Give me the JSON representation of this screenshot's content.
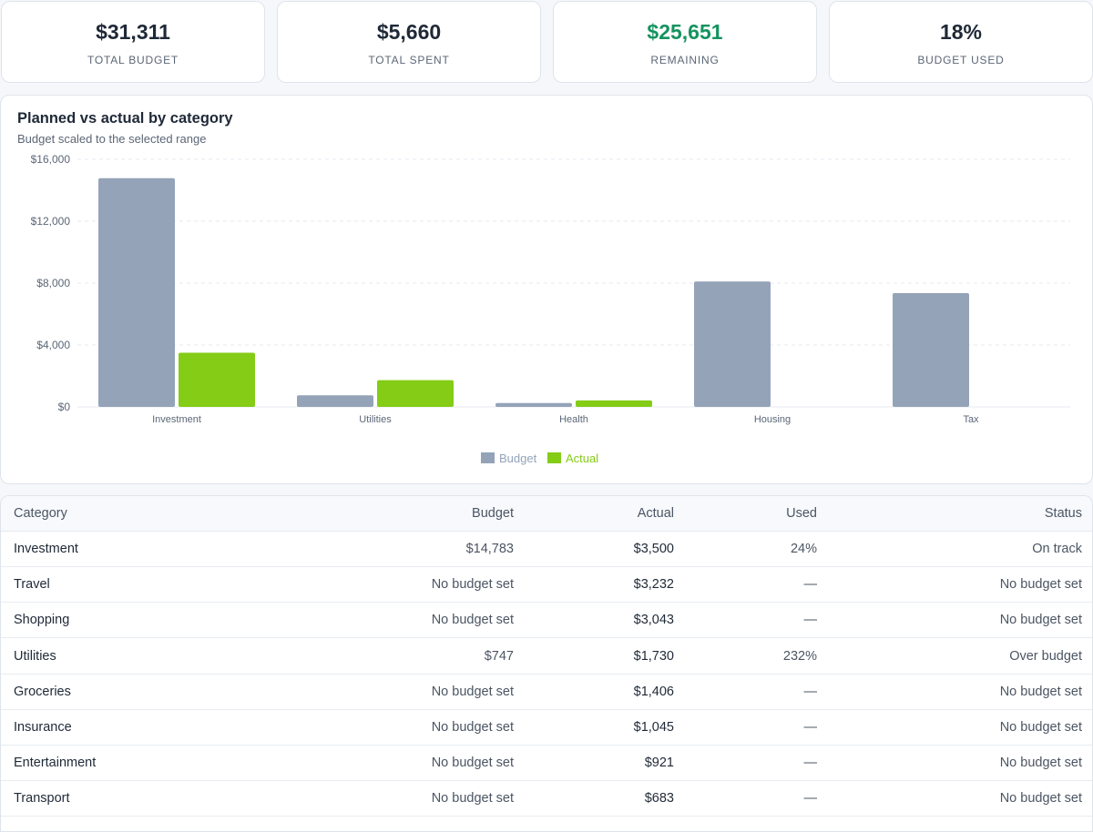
{
  "kpis": [
    {
      "value": "$31,311",
      "label": "TOTAL BUDGET",
      "color": "#1f2937"
    },
    {
      "value": "$5,660",
      "label": "TOTAL SPENT",
      "color": "#1f2937"
    },
    {
      "value": "$25,651",
      "label": "REMAINING",
      "color": "#15935f"
    },
    {
      "value": "18%",
      "label": "BUDGET USED",
      "color": "#1f2937"
    }
  ],
  "chart": {
    "title": "Planned vs actual by category",
    "subtitle": "Budget scaled to the selected range"
  },
  "chart_data": {
    "type": "bar",
    "categories": [
      "Investment",
      "Utilities",
      "Health",
      "Housing",
      "Tax"
    ],
    "series": [
      {
        "name": "Budget",
        "color": "#94a3b8",
        "values": [
          14783,
          747,
          250,
          8100,
          7350
        ]
      },
      {
        "name": "Actual",
        "color": "#84cc16",
        "values": [
          3500,
          1730,
          420,
          0,
          0
        ]
      }
    ],
    "ylim": [
      0,
      16000
    ],
    "yticks": [
      0,
      4000,
      8000,
      12000,
      16000
    ],
    "ytick_labels": [
      "$0",
      "$4,000",
      "$8,000",
      "$12,000",
      "$16,000"
    ],
    "grid": true,
    "legend": "bottom-center"
  },
  "table": {
    "headers": {
      "category": "Category",
      "budget": "Budget",
      "actual": "Actual",
      "used": "Used",
      "status": "Status"
    },
    "rows": [
      {
        "category": "Investment",
        "budget": "$14,783",
        "actual": "$3,500",
        "used": "24%",
        "status": "On track"
      },
      {
        "category": "Travel",
        "budget": "No budget set",
        "actual": "$3,232",
        "used": "—",
        "status": "No budget set"
      },
      {
        "category": "Shopping",
        "budget": "No budget set",
        "actual": "$3,043",
        "used": "—",
        "status": "No budget set"
      },
      {
        "category": "Utilities",
        "budget": "$747",
        "actual": "$1,730",
        "used": "232%",
        "status": "Over budget"
      },
      {
        "category": "Groceries",
        "budget": "No budget set",
        "actual": "$1,406",
        "used": "—",
        "status": "No budget set"
      },
      {
        "category": "Insurance",
        "budget": "No budget set",
        "actual": "$1,045",
        "used": "—",
        "status": "No budget set"
      },
      {
        "category": "Entertainment",
        "budget": "No budget set",
        "actual": "$921",
        "used": "—",
        "status": "No budget set"
      },
      {
        "category": "Transport",
        "budget": "No budget set",
        "actual": "$683",
        "used": "—",
        "status": "No budget set"
      }
    ]
  }
}
